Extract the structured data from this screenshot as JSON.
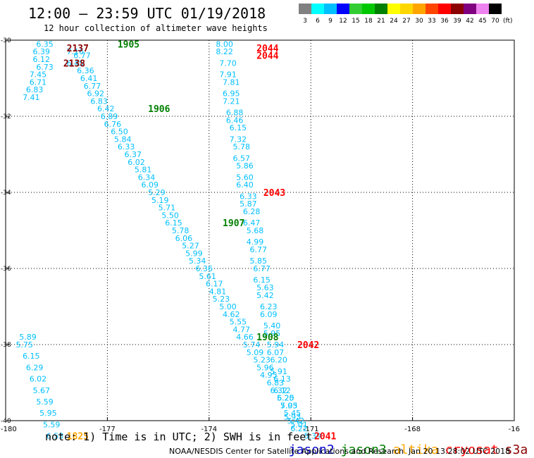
{
  "header": {
    "title": "12:00 – 23:59 UTC 01/19/2018",
    "subtitle": "12 hour collection of altimeter wave heights"
  },
  "colorbar": {
    "labels": [
      "3",
      "6",
      "9",
      "12",
      "15",
      "18",
      "21",
      "24",
      "27",
      "30",
      "33",
      "36",
      "39",
      "42",
      "45",
      "70"
    ],
    "unit": "(ft)",
    "colors": [
      "#808080",
      "#00ffff",
      "#00bfff",
      "#0000ff",
      "#32cd32",
      "#00c800",
      "#008000",
      "#ffff00",
      "#ffd700",
      "#ffa500",
      "#ff4500",
      "#ff0000",
      "#8b0000",
      "#800080",
      "#ee82ee",
      "#000000"
    ]
  },
  "map": {
    "lat_labels": [
      "-30",
      "-32",
      "-34",
      "-36",
      "-38",
      "-40"
    ],
    "lon_labels": [
      "-180",
      "-177",
      "-174",
      "-171",
      "-168",
      "-16"
    ]
  },
  "chart_data": {
    "type": "scatter",
    "xlim": [
      -180,
      -165
    ],
    "ylim": [
      -40,
      -30
    ],
    "xlabel": "",
    "ylabel": "",
    "grid": true,
    "tracks": [
      {
        "color": "#00bfff",
        "points": [
          {
            "x": -179.1,
            "y": -30.1,
            "v": "6.35"
          },
          {
            "x": -179.2,
            "y": -30.3,
            "v": "6.39"
          },
          {
            "x": -179.2,
            "y": -30.5,
            "v": "6.12"
          },
          {
            "x": -179.1,
            "y": -30.7,
            "v": "6.73"
          },
          {
            "x": -179.3,
            "y": -30.9,
            "v": "7.45"
          },
          {
            "x": -179.3,
            "y": -31.1,
            "v": "6.71"
          },
          {
            "x": -179.4,
            "y": -31.3,
            "v": "6.83"
          },
          {
            "x": -179.5,
            "y": -31.5,
            "v": "7.41"
          }
        ]
      },
      {
        "color": "#00bfff",
        "points": [
          {
            "x": -178.2,
            "y": -30.3,
            "v": "7.16"
          },
          {
            "x": -178.0,
            "y": -30.4,
            "v": "6.77"
          },
          {
            "x": -178.2,
            "y": -30.6,
            "v": "6.45"
          },
          {
            "x": -177.9,
            "y": -30.8,
            "v": "6.36"
          },
          {
            "x": -177.8,
            "y": -31.0,
            "v": "6.41"
          },
          {
            "x": -177.7,
            "y": -31.2,
            "v": "6.77"
          },
          {
            "x": -177.6,
            "y": -31.4,
            "v": "6.92"
          },
          {
            "x": -177.5,
            "y": -31.6,
            "v": "6.83"
          },
          {
            "x": -177.3,
            "y": -31.8,
            "v": "6.42"
          },
          {
            "x": -177.2,
            "y": -32.0,
            "v": "6.89"
          },
          {
            "x": -177.1,
            "y": -32.2,
            "v": "6.76"
          },
          {
            "x": -176.9,
            "y": -32.4,
            "v": "6.50"
          },
          {
            "x": -176.8,
            "y": -32.6,
            "v": "5.84"
          },
          {
            "x": -176.7,
            "y": -32.8,
            "v": "6.33"
          },
          {
            "x": -176.5,
            "y": -33.0,
            "v": "6.37"
          },
          {
            "x": -176.4,
            "y": -33.2,
            "v": "6.02"
          },
          {
            "x": -176.2,
            "y": -33.4,
            "v": "5.81"
          },
          {
            "x": -176.1,
            "y": -33.6,
            "v": "6.34"
          },
          {
            "x": -176.0,
            "y": -33.8,
            "v": "6.09"
          },
          {
            "x": -175.8,
            "y": -34.0,
            "v": "5.29"
          },
          {
            "x": -175.7,
            "y": -34.2,
            "v": "5.19"
          },
          {
            "x": -175.5,
            "y": -34.4,
            "v": "5.71"
          },
          {
            "x": -175.4,
            "y": -34.6,
            "v": "5.50"
          },
          {
            "x": -175.3,
            "y": -34.8,
            "v": "6.15"
          },
          {
            "x": -175.1,
            "y": -35.0,
            "v": "5.78"
          },
          {
            "x": -175.0,
            "y": -35.2,
            "v": "6.06"
          },
          {
            "x": -174.8,
            "y": -35.4,
            "v": "5.27"
          },
          {
            "x": -174.7,
            "y": -35.6,
            "v": "5.99"
          },
          {
            "x": -174.6,
            "y": -35.8,
            "v": "5.34"
          },
          {
            "x": -174.4,
            "y": -36.0,
            "v": "6.36"
          },
          {
            "x": -174.3,
            "y": -36.2,
            "v": "5.61"
          },
          {
            "x": -174.1,
            "y": -36.4,
            "v": "6.17"
          },
          {
            "x": -174.0,
            "y": -36.6,
            "v": "4.81"
          },
          {
            "x": -173.9,
            "y": -36.8,
            "v": "5.23"
          },
          {
            "x": -173.7,
            "y": -37.0,
            "v": "5.00"
          },
          {
            "x": -173.6,
            "y": -37.2,
            "v": "4.62"
          },
          {
            "x": -173.4,
            "y": -37.4,
            "v": "5.55"
          },
          {
            "x": -173.3,
            "y": -37.6,
            "v": "4.77"
          },
          {
            "x": -173.2,
            "y": -37.8,
            "v": "4.66"
          },
          {
            "x": -173.0,
            "y": -38.0,
            "v": "5.74"
          },
          {
            "x": -172.9,
            "y": -38.2,
            "v": "5.09"
          },
          {
            "x": -172.7,
            "y": -38.4,
            "v": "5.23"
          },
          {
            "x": -172.6,
            "y": -38.6,
            "v": "5.96"
          },
          {
            "x": -172.5,
            "y": -38.8,
            "v": "4.95"
          },
          {
            "x": -172.3,
            "y": -39.0,
            "v": "6.83"
          },
          {
            "x": -172.2,
            "y": -39.2,
            "v": "6.32"
          },
          {
            "x": -172.0,
            "y": -39.4,
            "v": "5.20"
          },
          {
            "x": -171.9,
            "y": -39.6,
            "v": "7.03"
          },
          {
            "x": -171.8,
            "y": -39.8,
            "v": "5.45"
          },
          {
            "x": -171.7,
            "y": -40.0,
            "v": "5.42"
          },
          {
            "x": -171.6,
            "y": -40.2,
            "v": "6.22"
          }
        ]
      },
      {
        "color": "#00bfff",
        "points": [
          {
            "x": -173.8,
            "y": -30.1,
            "v": "8.00"
          },
          {
            "x": -173.8,
            "y": -30.3,
            "v": "8.22"
          },
          {
            "x": -173.7,
            "y": -30.6,
            "v": "7.70"
          },
          {
            "x": -173.7,
            "y": -30.9,
            "v": "7.91"
          },
          {
            "x": -173.6,
            "y": -31.1,
            "v": "7.81"
          },
          {
            "x": -173.6,
            "y": -31.4,
            "v": "6.95"
          },
          {
            "x": -173.6,
            "y": -31.6,
            "v": "7.21"
          },
          {
            "x": -173.5,
            "y": -31.9,
            "v": "6.88"
          },
          {
            "x": -173.5,
            "y": -32.1,
            "v": "6.46"
          },
          {
            "x": -173.4,
            "y": -32.3,
            "v": "6.15"
          },
          {
            "x": -173.4,
            "y": -32.6,
            "v": "7.32"
          },
          {
            "x": -173.3,
            "y": -32.8,
            "v": "5.78"
          },
          {
            "x": -173.3,
            "y": -33.1,
            "v": "6.57"
          },
          {
            "x": -173.2,
            "y": -33.3,
            "v": "5.86"
          },
          {
            "x": -173.2,
            "y": -33.6,
            "v": "5.60"
          },
          {
            "x": -173.2,
            "y": -33.8,
            "v": "6.40"
          },
          {
            "x": -173.1,
            "y": -34.1,
            "v": "6.33"
          },
          {
            "x": -173.1,
            "y": -34.3,
            "v": "5.87"
          },
          {
            "x": -173.0,
            "y": -34.5,
            "v": "6.28"
          },
          {
            "x": -173.0,
            "y": -34.8,
            "v": "6.47"
          },
          {
            "x": -172.9,
            "y": -35.0,
            "v": "5.68"
          },
          {
            "x": -172.9,
            "y": -35.3,
            "v": "4.99"
          },
          {
            "x": -172.8,
            "y": -35.5,
            "v": "6.77"
          },
          {
            "x": -172.8,
            "y": -35.8,
            "v": "5.85"
          },
          {
            "x": -172.7,
            "y": -36.0,
            "v": "6.77"
          },
          {
            "x": -172.7,
            "y": -36.3,
            "v": "6.15"
          },
          {
            "x": -172.6,
            "y": -36.5,
            "v": "5.63"
          },
          {
            "x": -172.6,
            "y": -36.7,
            "v": "5.42"
          },
          {
            "x": -172.5,
            "y": -37.0,
            "v": "6.23"
          },
          {
            "x": -172.5,
            "y": -37.2,
            "v": "6.09"
          },
          {
            "x": -172.4,
            "y": -37.5,
            "v": "5.40"
          },
          {
            "x": -172.4,
            "y": -37.7,
            "v": "5.95"
          },
          {
            "x": -172.3,
            "y": -38.0,
            "v": "5.94"
          },
          {
            "x": -172.3,
            "y": -38.2,
            "v": "6.07"
          },
          {
            "x": -172.2,
            "y": -38.4,
            "v": "6.20"
          },
          {
            "x": -172.2,
            "y": -38.7,
            "v": "5.91"
          },
          {
            "x": -172.1,
            "y": -38.9,
            "v": "6.13"
          },
          {
            "x": -172.1,
            "y": -39.2,
            "v": "6.12"
          },
          {
            "x": -172.0,
            "y": -39.4,
            "v": "6.25"
          },
          {
            "x": -171.9,
            "y": -39.6,
            "v": "5.95"
          },
          {
            "x": -171.8,
            "y": -39.9,
            "v": "5.93"
          },
          {
            "x": -171.6,
            "y": -40.1,
            "v": "5.01"
          },
          {
            "x": -171.2,
            "y": -40.4,
            "v": "5.39"
          }
        ]
      },
      {
        "color": "#00bfff",
        "points": [
          {
            "x": -179.6,
            "y": -37.8,
            "v": "5.89"
          },
          {
            "x": -179.7,
            "y": -38.0,
            "v": "5.75"
          },
          {
            "x": -179.5,
            "y": -38.3,
            "v": "6.15"
          },
          {
            "x": -179.4,
            "y": -38.6,
            "v": "6.29"
          },
          {
            "x": -179.3,
            "y": -38.9,
            "v": "6.02"
          },
          {
            "x": -179.2,
            "y": -39.2,
            "v": "5.67"
          },
          {
            "x": -179.1,
            "y": -39.5,
            "v": "5.59"
          },
          {
            "x": -179.0,
            "y": -39.8,
            "v": "5.95"
          },
          {
            "x": -178.9,
            "y": -40.1,
            "v": "5.59"
          },
          {
            "x": -178.8,
            "y": -40.4,
            "v": "6.53"
          }
        ]
      }
    ],
    "time_labels": [
      {
        "x": -178.2,
        "y": -30.2,
        "v": "2137",
        "color": "#8b0000"
      },
      {
        "x": -178.3,
        "y": -30.6,
        "v": "2138",
        "color": "#8b0000"
      },
      {
        "x": -176.7,
        "y": -30.1,
        "v": "1905",
        "color": "#008000"
      },
      {
        "x": -175.8,
        "y": -31.8,
        "v": "1906",
        "color": "#008000"
      },
      {
        "x": -173.6,
        "y": -34.8,
        "v": "1907",
        "color": "#008000"
      },
      {
        "x": -172.6,
        "y": -37.8,
        "v": "1908",
        "color": "#008000"
      },
      {
        "x": -172.6,
        "y": -30.2,
        "v": "2044",
        "color": "#ff0000"
      },
      {
        "x": -172.6,
        "y": -30.4,
        "v": "2044",
        "color": "#ff0000"
      },
      {
        "x": -172.4,
        "y": -34.0,
        "v": "2043",
        "color": "#ff0000"
      },
      {
        "x": -171.4,
        "y": -38.0,
        "v": "2042",
        "color": "#ff0000"
      },
      {
        "x": -170.9,
        "y": -40.4,
        "v": "2041",
        "color": "#ff0000"
      },
      {
        "x": -178.2,
        "y": -40.4,
        "v": "1825",
        "color": "#ffa500"
      }
    ]
  },
  "footer": {
    "note": "note: 1) Time is in UTC; 2) SWH is in feet",
    "satellites": [
      {
        "name": "jason2",
        "color": "#0000cd"
      },
      {
        "name": "jason3",
        "color": "#008000"
      },
      {
        "name": "altika",
        "color": "#ffa500"
      },
      {
        "name": "cryosat",
        "color": "#ff0000"
      },
      {
        "name": "s3a",
        "color": "#8b0000"
      }
    ],
    "credit": "NOAA/NESDIS Center for Satellite Applications and Research",
    "timestamp": "Jan 20 13:28:02 UTC 2018"
  }
}
